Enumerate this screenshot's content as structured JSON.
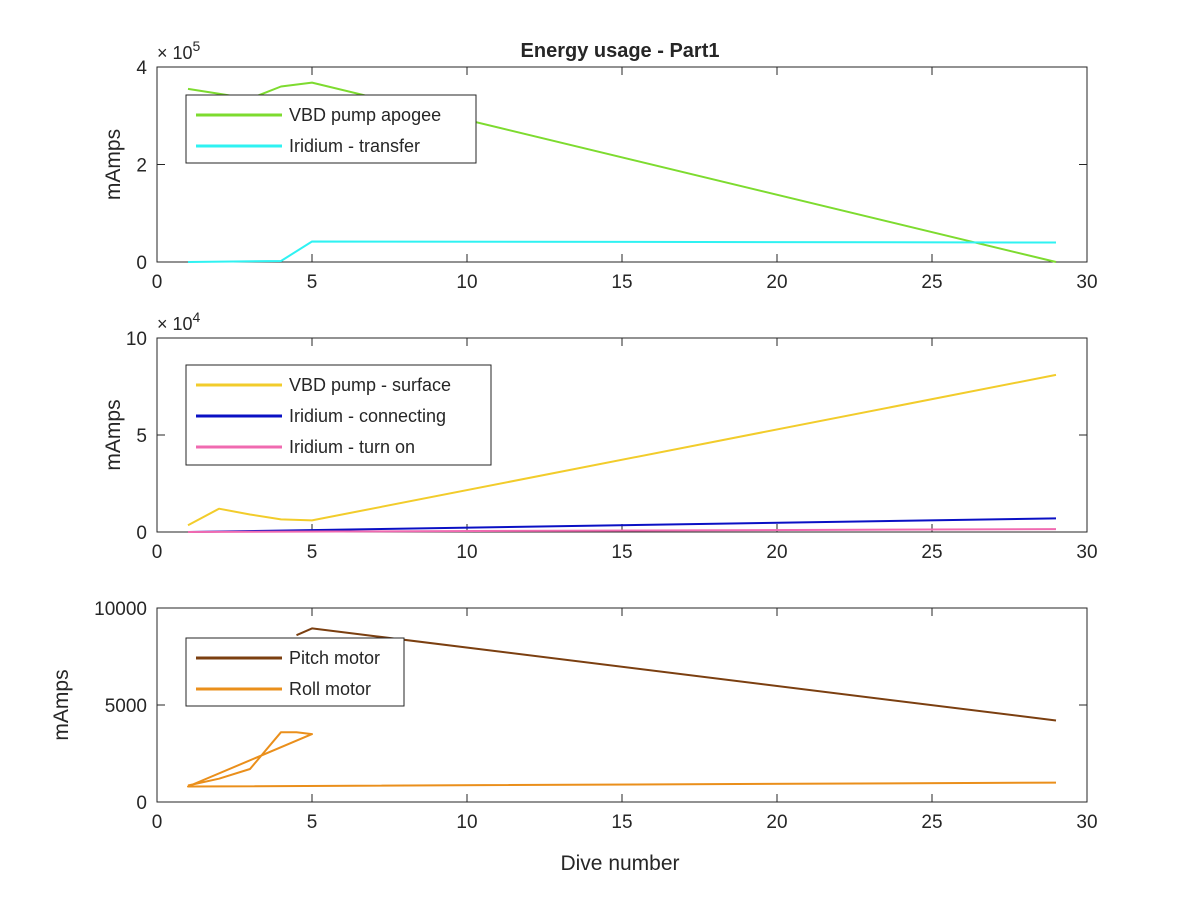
{
  "figure": {
    "title": "Energy usage - Part1",
    "xlabel": "Dive number"
  },
  "colors": {
    "axis": "#262626",
    "background": "#ffffff"
  },
  "chart_data": [
    {
      "type": "line",
      "title": "Energy usage - Part1",
      "xlabel": "",
      "ylabel": "mAmps",
      "xlim": [
        0,
        30
      ],
      "ylim": [
        0,
        400000
      ],
      "xticks": [
        0,
        5,
        10,
        15,
        20,
        25,
        30
      ],
      "yticks": [
        0,
        200000,
        400000
      ],
      "ytick_labels": [
        "0",
        "2",
        "4"
      ],
      "exponent_label": "× 10",
      "exponent_power": "5",
      "legend_position": "top-left",
      "grid": false,
      "series": [
        {
          "name": "VBD pump apogee",
          "color": "#7ddb2f",
          "x": [
            1,
            2,
            3,
            4,
            5,
            29
          ],
          "y": [
            355000,
            345000,
            335000,
            360000,
            368000,
            0
          ]
        },
        {
          "name": "Iridium - transfer",
          "color": "#2ff2f2",
          "x": [
            1,
            4,
            5,
            29
          ],
          "y": [
            0,
            2000,
            42000,
            40000
          ]
        }
      ]
    },
    {
      "type": "line",
      "title": "",
      "xlabel": "",
      "ylabel": "mAmps",
      "xlim": [
        0,
        30
      ],
      "ylim": [
        0,
        100000
      ],
      "xticks": [
        0,
        5,
        10,
        15,
        20,
        25,
        30
      ],
      "yticks": [
        0,
        50000,
        100000
      ],
      "ytick_labels": [
        "0",
        "5",
        "10"
      ],
      "exponent_label": "× 10",
      "exponent_power": "4",
      "legend_position": "top-left",
      "grid": false,
      "series": [
        {
          "name": "VBD pump - surface",
          "color": "#f2cc2b",
          "x": [
            1,
            2,
            3,
            4,
            5,
            29
          ],
          "y": [
            3500,
            12000,
            9000,
            6500,
            6000,
            81000
          ]
        },
        {
          "name": "Iridium - connecting",
          "color": "#0a10c4",
          "x": [
            1,
            29
          ],
          "y": [
            0,
            7000
          ]
        },
        {
          "name": "Iridium - turn on",
          "color": "#f06ab0",
          "x": [
            1,
            29
          ],
          "y": [
            0,
            1500
          ]
        }
      ]
    },
    {
      "type": "line",
      "title": "",
      "xlabel": "Dive number",
      "ylabel": "mAmps",
      "xlim": [
        0,
        30
      ],
      "ylim": [
        0,
        10000
      ],
      "xticks": [
        0,
        5,
        10,
        15,
        20,
        25,
        30
      ],
      "yticks": [
        0,
        5000,
        10000
      ],
      "ytick_labels": [
        "0",
        "5000",
        "10000"
      ],
      "exponent_label": "",
      "exponent_power": "",
      "legend_position": "top-left",
      "grid": false,
      "series": [
        {
          "name": "Pitch motor",
          "color": "#7b3f10",
          "x": [
            4.5,
            5,
            29
          ],
          "y": [
            8600,
            8950,
            4200
          ]
        },
        {
          "name": "Roll motor",
          "color": "#ea8f1b",
          "x": [
            1,
            2,
            3,
            4,
            4.5,
            5,
            1,
            29
          ],
          "y": [
            850,
            1200,
            1700,
            3600,
            3600,
            3500,
            800,
            1000
          ]
        }
      ]
    }
  ]
}
